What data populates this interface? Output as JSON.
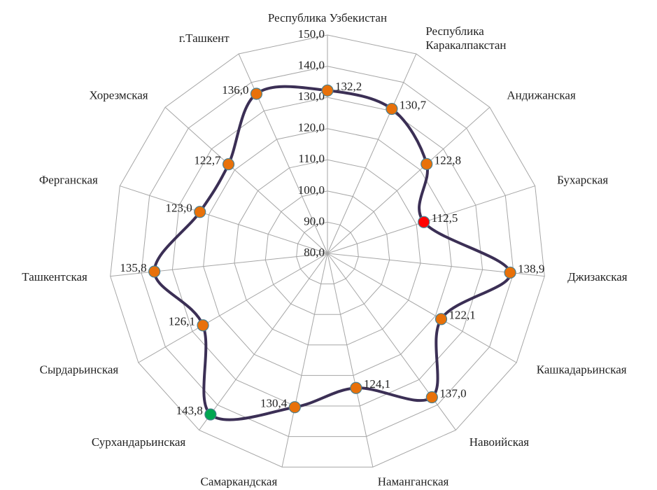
{
  "chart_data": {
    "type": "radar",
    "categories": [
      "Республика Узбекистан",
      "Республика\nКаракалпакстан",
      "Андижанская",
      "Бухарская",
      "Джизакская",
      "Кашкадарьинская",
      "Навоийская",
      "Наманганская",
      "Самаркандская",
      "Сурхандарьинская",
      "Сырдарьинская",
      "Ташкентская",
      "Ферганская",
      "Хорезмская",
      "г.Ташкент"
    ],
    "series": [
      {
        "color": "#3b2f55",
        "values": [
          132.2,
          130.7,
          122.8,
          112.5,
          138.9,
          122.1,
          137.0,
          124.1,
          130.4,
          143.8,
          126.1,
          135.8,
          123.0,
          122.7,
          136.0
        ],
        "value_labels": [
          "132,2",
          "130,7",
          "122,8",
          "112,5",
          "138,9",
          "122,1",
          "137,0",
          "124,1",
          "130,4",
          "143,8",
          "126,1",
          "135,8",
          "123,0",
          "122,7",
          "136,0"
        ],
        "marker_colors": [
          "#e8710a",
          "#e8710a",
          "#e8710a",
          "#ff0000",
          "#e8710a",
          "#e8710a",
          "#e8710a",
          "#e8710a",
          "#e8710a",
          "#00a651",
          "#e8710a",
          "#e8710a",
          "#e8710a",
          "#e8710a",
          "#e8710a"
        ]
      }
    ],
    "ylim": [
      80,
      150
    ],
    "yticks": [
      {
        "value": 80,
        "label": "80,0"
      },
      {
        "value": 90,
        "label": "90,0"
      },
      {
        "value": 100,
        "label": "100,0"
      },
      {
        "value": 110,
        "label": "110,0"
      },
      {
        "value": 120,
        "label": "120,0"
      },
      {
        "value": 130,
        "label": "130,0"
      },
      {
        "value": 140,
        "label": "140,0"
      },
      {
        "value": 150,
        "label": "150,0"
      }
    ],
    "grid": true
  }
}
